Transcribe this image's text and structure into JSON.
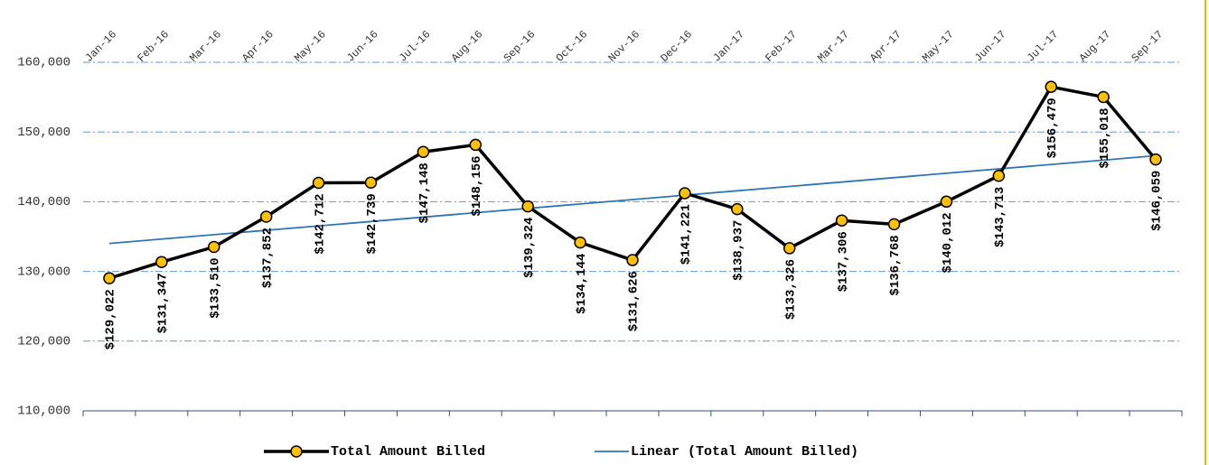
{
  "chart_data": {
    "type": "line",
    "categories": [
      "Jan-16",
      "Feb-16",
      "Mar-16",
      "Apr-16",
      "May-16",
      "Jun-16",
      "Jul-16",
      "Aug-16",
      "Sep-16",
      "Oct-16",
      "Nov-16",
      "Dec-16",
      "Jan-17",
      "Feb-17",
      "Mar-17",
      "Apr-17",
      "May-17",
      "Jun-17",
      "Jul-17",
      "Aug-17",
      "Sep-17"
    ],
    "series": [
      {
        "name": "Total Amount Billed",
        "color": "#000000",
        "marker_color": "#ffc000",
        "values": [
          129022,
          131347,
          133510,
          137852,
          142712,
          142739,
          147148,
          148156,
          139324,
          134144,
          131626,
          141221,
          138937,
          133326,
          137306,
          136768,
          140012,
          143713,
          156479,
          155018,
          146059
        ],
        "value_labels": [
          "$129,022",
          "$131,347",
          "$133,510",
          "$137,852",
          "$142,712",
          "$142,739",
          "$147,148",
          "$148,156",
          "$139,324",
          "$134,144",
          "$131,626",
          "$141,221",
          "$138,937",
          "$133,326",
          "$137,306",
          "$136,768",
          "$140,012",
          "$143,713",
          "$156,479",
          "$155,018",
          "$146,059"
        ]
      }
    ],
    "trendline": {
      "name": "Linear (Total Amount Billed)",
      "color": "#2e75b6",
      "kind": "linear"
    },
    "ylim": [
      110000,
      160000
    ],
    "yticks": [
      {
        "value": 110000,
        "label": "110,000"
      },
      {
        "value": 120000,
        "label": "120,000"
      },
      {
        "value": 130000,
        "label": "130,000"
      },
      {
        "value": 140000,
        "label": "140,000"
      },
      {
        "value": 150000,
        "label": "150,000"
      },
      {
        "value": 160000,
        "label": "160,000"
      }
    ],
    "grid": true,
    "legend": "bottom"
  }
}
